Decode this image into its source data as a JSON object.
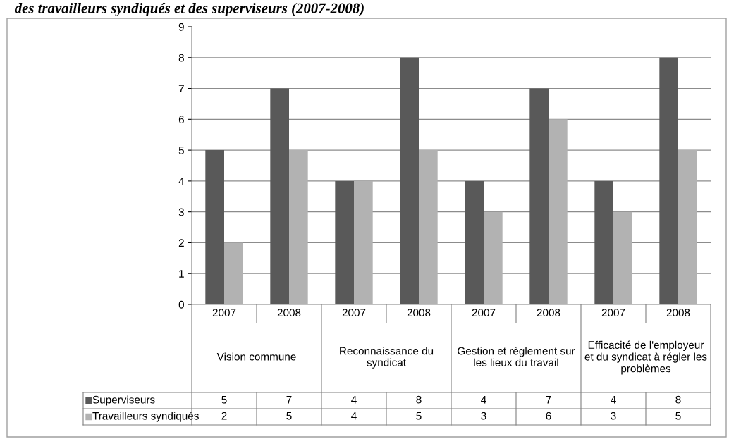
{
  "chart_data": {
    "type": "bar",
    "title": "des travailleurs syndiqués et des superviseurs (2007-2008)",
    "categories": [
      "2007",
      "2008",
      "2007",
      "2008",
      "2007",
      "2008",
      "2007",
      "2008"
    ],
    "series": [
      {
        "name": "Superviseurs",
        "color": "#595959",
        "values": [
          5,
          7,
          4,
          8,
          4,
          7,
          4,
          8
        ]
      },
      {
        "name": "Travailleurs syndiqués",
        "color": "#b2b2b2",
        "values": [
          2,
          5,
          4,
          5,
          3,
          6,
          3,
          5
        ]
      }
    ],
    "annotations": [
      "Vision commune",
      "Reconnaissance du syndicat",
      "Gestion et règlement sur les lieux du travail",
      "Efficacité de l'employeur et du syndicat à régler les problèmes"
    ],
    "ylim": [
      0,
      9
    ],
    "yticks": [
      0,
      1,
      2,
      3,
      4,
      5,
      6,
      7,
      8,
      9
    ],
    "grid": "y",
    "legend": "bottom",
    "data_labels": true
  }
}
